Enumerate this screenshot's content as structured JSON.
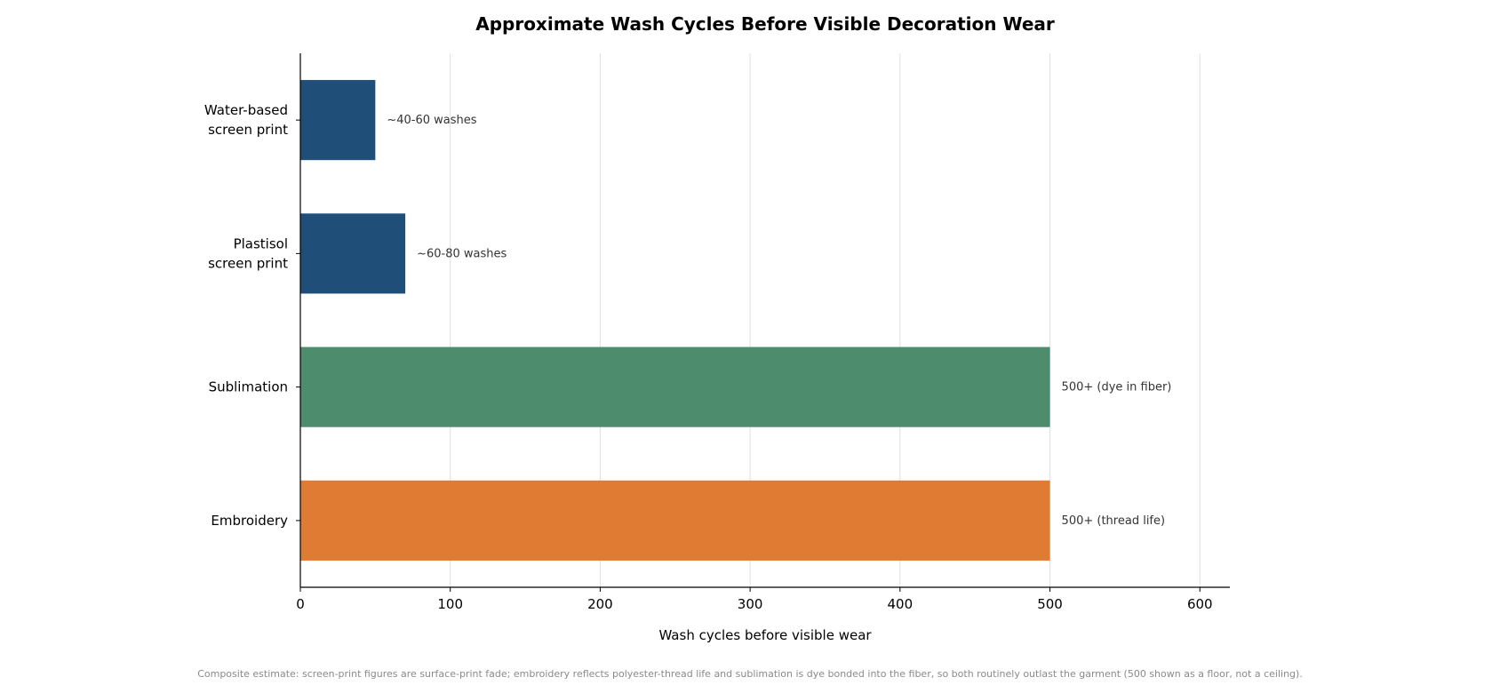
{
  "chart_data": {
    "type": "bar",
    "orientation": "horizontal",
    "title": "Approximate Wash Cycles Before Visible Decoration Wear",
    "xlabel": "Wash cycles before visible wear",
    "ylabel": "",
    "xlim": [
      0,
      620
    ],
    "xticks": [
      0,
      100,
      200,
      300,
      400,
      500,
      600
    ],
    "grid": "vertical",
    "categories": [
      {
        "lines": [
          "Water-based",
          "screen print"
        ],
        "value": 50,
        "label": "~40-60 washes",
        "color": "#1f4e79"
      },
      {
        "lines": [
          "Plastisol",
          "screen print"
        ],
        "value": 70,
        "label": "~60-80 washes",
        "color": "#1f4e79"
      },
      {
        "lines": [
          "Sublimation"
        ],
        "value": 500,
        "label": "500+ (dye in fiber)",
        "color": "#4e8c6e"
      },
      {
        "lines": [
          "Embroidery"
        ],
        "value": 500,
        "label": "500+ (thread life)",
        "color": "#e07b33"
      }
    ],
    "footnote": "Composite estimate: screen-print figures are surface-print fade; embroidery reflects polyester-thread life and sublimation is dye bonded into the fiber, so both routinely outlast the garment (500 shown as a floor, not a ceiling)."
  }
}
